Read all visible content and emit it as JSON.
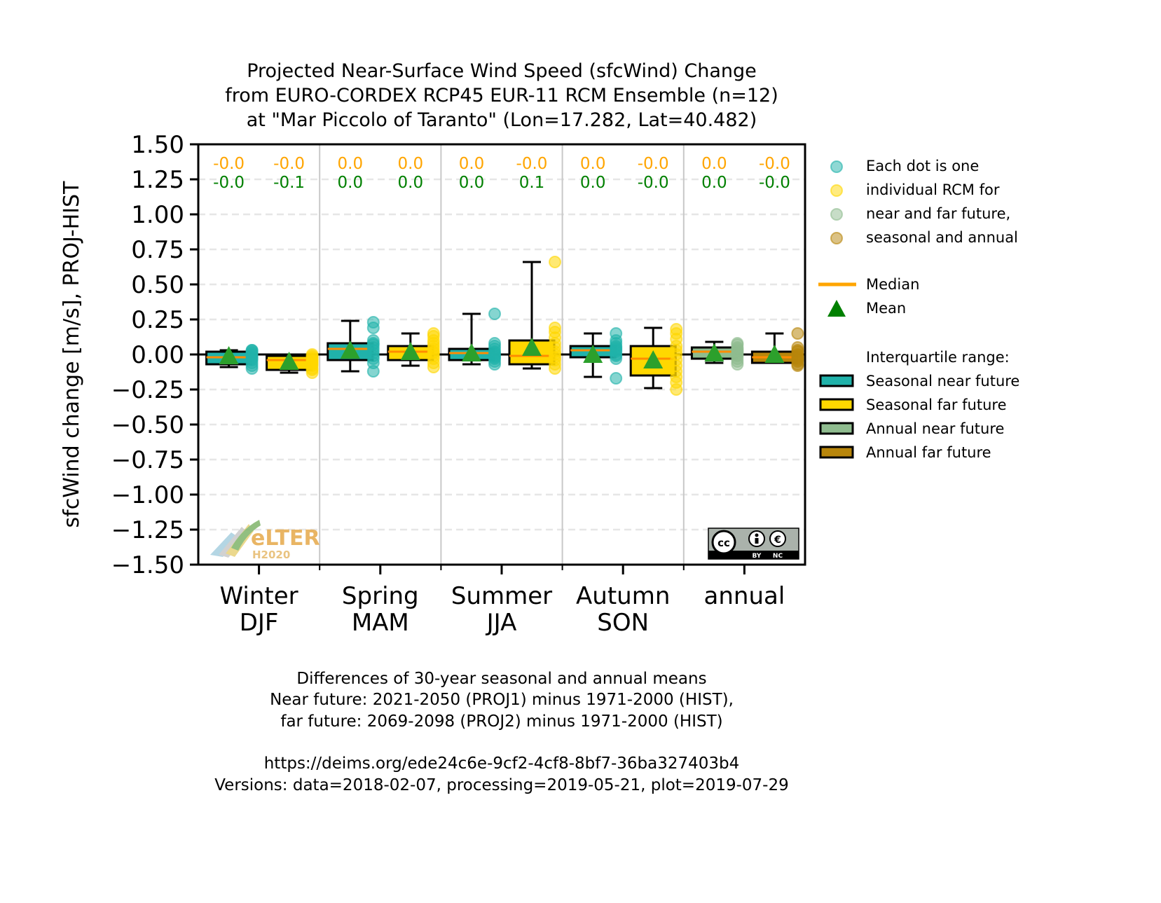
{
  "chart_data": {
    "type": "box",
    "title": [
      "Projected Near-Surface Wind Speed (sfcWind) Change",
      "from EURO-CORDEX RCP45 EUR-11 RCM Ensemble (n=12)",
      "at \"Mar Piccolo of Taranto\" (Lon=17.282, Lat=40.482)"
    ],
    "ylabel": "sfcWind change [m/s], PROJ-HIST",
    "ylim": [
      -1.5,
      1.5
    ],
    "yticks": [
      1.5,
      1.25,
      1.0,
      0.75,
      0.5,
      0.25,
      0.0,
      -0.25,
      -0.5,
      -0.75,
      -1.0,
      -1.25,
      -1.5
    ],
    "ytick_labels": [
      "1.50",
      "1.25",
      "1.00",
      "0.75",
      "0.50",
      "0.25",
      "0.00",
      "−0.25",
      "−0.50",
      "−0.75",
      "−1.00",
      "−1.25",
      "−1.50"
    ],
    "grid": "horizontal dashed",
    "categories": [
      {
        "line1": "Winter",
        "line2": "DJF"
      },
      {
        "line1": "Spring",
        "line2": "MAM"
      },
      {
        "line1": "Summer",
        "line2": "JJA"
      },
      {
        "line1": "Autumn",
        "line2": "SON"
      },
      {
        "line1": "annual",
        "line2": ""
      }
    ],
    "boxes": [
      {
        "category": 0,
        "series": "near",
        "kind": "seasonal",
        "whisker_low": -0.09,
        "q1": -0.07,
        "median": -0.02,
        "q3": 0.02,
        "whisker_high": 0.03,
        "mean": -0.01,
        "points": [
          -0.1,
          -0.08,
          -0.06,
          -0.04,
          -0.02,
          -0.01,
          0.0,
          0.01,
          0.02,
          0.03,
          0.03,
          -0.03
        ]
      },
      {
        "category": 0,
        "series": "far",
        "kind": "seasonal",
        "whisker_low": -0.13,
        "q1": -0.11,
        "median": -0.04,
        "q3": -0.01,
        "whisker_high": -0.01,
        "mean": -0.05,
        "points": [
          -0.13,
          -0.11,
          -0.1,
          -0.08,
          -0.06,
          -0.05,
          -0.04,
          -0.03,
          -0.02,
          -0.01,
          0.0,
          -0.07
        ]
      },
      {
        "category": 1,
        "series": "near",
        "kind": "seasonal",
        "whisker_low": -0.12,
        "q1": -0.04,
        "median": 0.04,
        "q3": 0.08,
        "whisker_high": 0.24,
        "mean": 0.03,
        "points": [
          -0.12,
          -0.06,
          -0.03,
          -0.01,
          0.01,
          0.03,
          0.05,
          0.07,
          0.08,
          0.1,
          0.19,
          0.23
        ]
      },
      {
        "category": 1,
        "series": "far",
        "kind": "seasonal",
        "whisker_low": -0.08,
        "q1": -0.04,
        "median": 0.02,
        "q3": 0.06,
        "whisker_high": 0.15,
        "mean": 0.02,
        "points": [
          -0.09,
          -0.06,
          -0.03,
          -0.01,
          0.01,
          0.02,
          0.04,
          0.06,
          0.08,
          0.1,
          0.13,
          0.15
        ]
      },
      {
        "category": 2,
        "series": "near",
        "kind": "seasonal",
        "whisker_low": -0.07,
        "q1": -0.04,
        "median": 0.01,
        "q3": 0.04,
        "whisker_high": 0.29,
        "mean": 0.01,
        "points": [
          -0.07,
          -0.05,
          -0.03,
          -0.02,
          -0.01,
          0.0,
          0.01,
          0.02,
          0.04,
          0.06,
          0.08,
          0.29
        ]
      },
      {
        "category": 2,
        "series": "far",
        "kind": "seasonal",
        "whisker_low": -0.1,
        "q1": -0.07,
        "median": -0.01,
        "q3": 0.1,
        "whisker_high": 0.66,
        "mean": 0.05,
        "points": [
          -0.1,
          -0.07,
          -0.04,
          -0.02,
          0.0,
          0.02,
          0.05,
          0.08,
          0.12,
          0.16,
          0.19,
          0.66
        ]
      },
      {
        "category": 3,
        "series": "near",
        "kind": "seasonal",
        "whisker_low": -0.16,
        "q1": -0.02,
        "median": 0.03,
        "q3": 0.06,
        "whisker_high": 0.15,
        "mean": 0.0,
        "points": [
          -0.17,
          -0.03,
          -0.01,
          0.0,
          0.02,
          0.03,
          0.04,
          0.05,
          0.06,
          0.08,
          0.1,
          0.15
        ]
      },
      {
        "category": 3,
        "series": "far",
        "kind": "seasonal",
        "whisker_low": -0.24,
        "q1": -0.15,
        "median": -0.03,
        "q3": 0.06,
        "whisker_high": 0.19,
        "mean": -0.04,
        "points": [
          -0.25,
          -0.2,
          -0.16,
          -0.12,
          -0.08,
          -0.04,
          0.0,
          0.03,
          0.06,
          0.11,
          0.15,
          0.18
        ]
      },
      {
        "category": 4,
        "series": "near",
        "kind": "annual",
        "whisker_low": -0.06,
        "q1": -0.03,
        "median": 0.02,
        "q3": 0.05,
        "whisker_high": 0.09,
        "mean": 0.01,
        "points": [
          -0.07,
          -0.05,
          -0.03,
          -0.01,
          0.0,
          0.01,
          0.02,
          0.03,
          0.04,
          0.05,
          0.07,
          0.08
        ]
      },
      {
        "category": 4,
        "series": "far",
        "kind": "annual",
        "whisker_low": -0.06,
        "q1": -0.06,
        "median": -0.02,
        "q3": 0.02,
        "whisker_high": 0.15,
        "mean": 0.0,
        "points": [
          -0.08,
          -0.07,
          -0.05,
          -0.04,
          -0.03,
          -0.02,
          -0.01,
          0.0,
          0.02,
          0.03,
          0.05,
          0.15
        ]
      }
    ],
    "annotations": {
      "median_labels": [
        "-0.0",
        "-0.0",
        "0.0",
        "0.0",
        "0.0",
        "-0.0",
        "0.0",
        "-0.0",
        "0.0",
        "-0.0"
      ],
      "mean_labels": [
        "-0.0",
        "-0.1",
        "0.0",
        "0.0",
        "0.0",
        "0.1",
        "0.0",
        "-0.0",
        "0.0",
        "-0.0"
      ]
    },
    "legend": {
      "placement": "right",
      "dots_text": [
        "Each dot is one",
        "individual RCM for",
        "near and far future,",
        "seasonal and annual"
      ],
      "median_label": "Median",
      "mean_label": "Mean",
      "iqr_title": "Interquartile range:",
      "iqr_items": [
        {
          "label": "Seasonal near future",
          "color": "#20b2aa"
        },
        {
          "label": "Seasonal far future",
          "color": "#ffd700"
        },
        {
          "label": "Annual near future",
          "color": "#8fbc8f"
        },
        {
          "label": "Annual far future",
          "color": "#b8860b"
        }
      ]
    },
    "colors": {
      "seasonal_near": "#20b2aa",
      "seasonal_far": "#ffd700",
      "annual_near": "#8fbc8f",
      "annual_far": "#b8860b",
      "median": "#ff8c00",
      "median_text": "#ffa500",
      "mean": "#2ca02c",
      "mean_text": "#008000"
    }
  },
  "logos": {
    "elter_text": "eLTER",
    "elter_sub": "H2020",
    "cc_text": "cc",
    "cc_by": "BY",
    "cc_nc": "NC"
  },
  "footer": {
    "lines": [
      "Differences of 30-year seasonal and annual means",
      "Near future: 2021-2050 (PROJ1) minus 1971-2000 (HIST),",
      "far future: 2069-2098 (PROJ2) minus 1971-2000 (HIST)"
    ],
    "url": "https://deims.org/ede24c6e-9cf2-4cf8-8bf7-36ba327403b4",
    "versions": "Versions: data=2018-02-07, processing=2019-05-21, plot=2019-07-29"
  }
}
